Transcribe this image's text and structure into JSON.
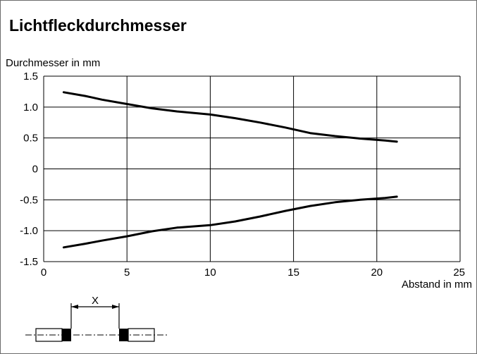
{
  "page": {
    "title": "Lichtfleckdurchmesser"
  },
  "chart_data": {
    "type": "line",
    "xlabel": "Abstand in mm",
    "ylabel": "Durchmesser in mm",
    "xlim": [
      0,
      25
    ],
    "ylim": [
      -1.5,
      1.5
    ],
    "x_ticks": [
      0,
      5,
      10,
      15,
      20,
      25
    ],
    "y_ticks": [
      1.5,
      1.0,
      0.5,
      0,
      -0.5,
      -1.0,
      -1.5
    ],
    "x_tick_labels": [
      "0",
      "5",
      "10",
      "15",
      "20",
      "25"
    ],
    "y_tick_labels": [
      "1.5",
      "1.0",
      "0.5",
      "0",
      "-0.5",
      "-1.0",
      "-1.5"
    ],
    "grid": true,
    "series": [
      {
        "x": [
          1.2,
          2.5,
          3.5,
          5,
          6.5,
          8,
          10,
          11.5,
          13,
          14.5,
          16,
          17.5,
          19,
          20.5,
          21.2
        ],
        "y": [
          1.24,
          1.18,
          1.12,
          1.05,
          0.98,
          0.93,
          0.88,
          0.82,
          0.75,
          0.67,
          0.58,
          0.53,
          0.49,
          0.46,
          0.44
        ]
      },
      {
        "x": [
          1.2,
          2.5,
          3.5,
          5,
          6.5,
          8,
          10,
          11.5,
          13,
          14.5,
          16,
          17.5,
          19,
          20.5,
          21.2
        ],
        "y": [
          -1.27,
          -1.21,
          -1.16,
          -1.09,
          -1.01,
          -0.95,
          -0.91,
          -0.85,
          -0.77,
          -0.68,
          -0.6,
          -0.54,
          -0.5,
          -0.47,
          -0.45
        ]
      }
    ]
  },
  "diagram": {
    "distance_label": "X"
  },
  "colors": {
    "line": "#000000",
    "grid": "#000000",
    "frame": "#6b6b6b"
  }
}
